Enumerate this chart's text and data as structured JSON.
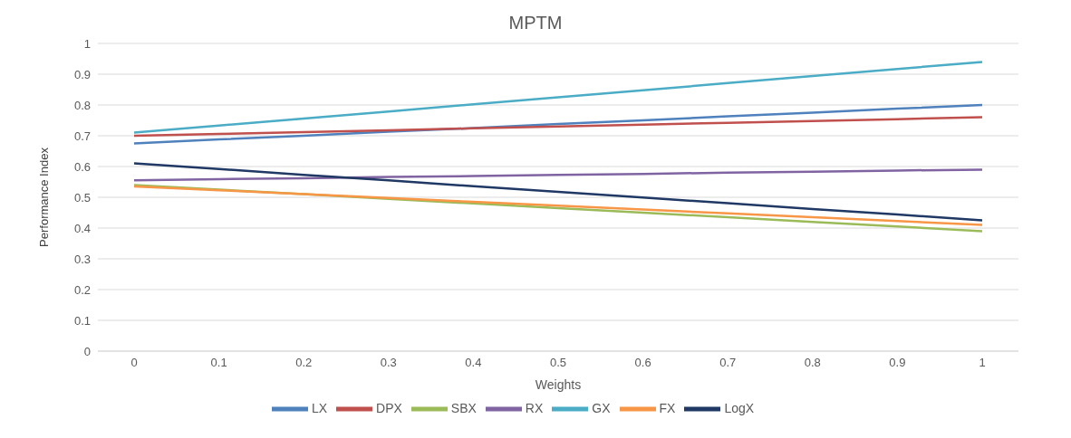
{
  "chart_data": {
    "type": "line",
    "title": "MPTM",
    "xlabel": "Weights",
    "ylabel": "Performance Index",
    "categories": [
      "0",
      "0.1",
      "0.2",
      "0.3",
      "0.4",
      "0.5",
      "0.6",
      "0.7",
      "0.8",
      "0.9",
      "1"
    ],
    "series": [
      {
        "name": "LX",
        "color": "#4f81bd",
        "values": [
          0.675,
          0.688,
          0.7,
          0.713,
          0.725,
          0.738,
          0.75,
          0.763,
          0.775,
          0.788,
          0.8
        ]
      },
      {
        "name": "DPX",
        "color": "#c0504d",
        "values": [
          0.7,
          0.706,
          0.712,
          0.718,
          0.724,
          0.73,
          0.736,
          0.742,
          0.748,
          0.754,
          0.76
        ]
      },
      {
        "name": "SBX",
        "color": "#9bbb59",
        "values": [
          0.54,
          0.525,
          0.51,
          0.495,
          0.48,
          0.465,
          0.45,
          0.435,
          0.42,
          0.405,
          0.39
        ]
      },
      {
        "name": "RX",
        "color": "#8064a2",
        "values": [
          0.555,
          0.559,
          0.562,
          0.566,
          0.569,
          0.573,
          0.576,
          0.58,
          0.583,
          0.587,
          0.59
        ]
      },
      {
        "name": "GX",
        "color": "#4bacc6",
        "values": [
          0.71,
          0.733,
          0.756,
          0.779,
          0.802,
          0.825,
          0.848,
          0.871,
          0.894,
          0.917,
          0.94
        ]
      },
      {
        "name": "FX",
        "color": "#f79646",
        "values": [
          0.535,
          0.523,
          0.51,
          0.498,
          0.485,
          0.473,
          0.46,
          0.448,
          0.435,
          0.423,
          0.41
        ]
      },
      {
        "name": "LogX",
        "color": "#1f3864",
        "values": [
          0.61,
          0.592,
          0.573,
          0.555,
          0.536,
          0.518,
          0.499,
          0.481,
          0.462,
          0.444,
          0.425
        ]
      }
    ],
    "ylim": [
      0,
      1
    ],
    "yticks": [
      0,
      0.1,
      0.2,
      0.3,
      0.4,
      0.5,
      0.6,
      0.7,
      0.8,
      0.9,
      1
    ],
    "grid": "y",
    "legend": "bottom",
    "marker": "none",
    "line_style": "solid"
  }
}
